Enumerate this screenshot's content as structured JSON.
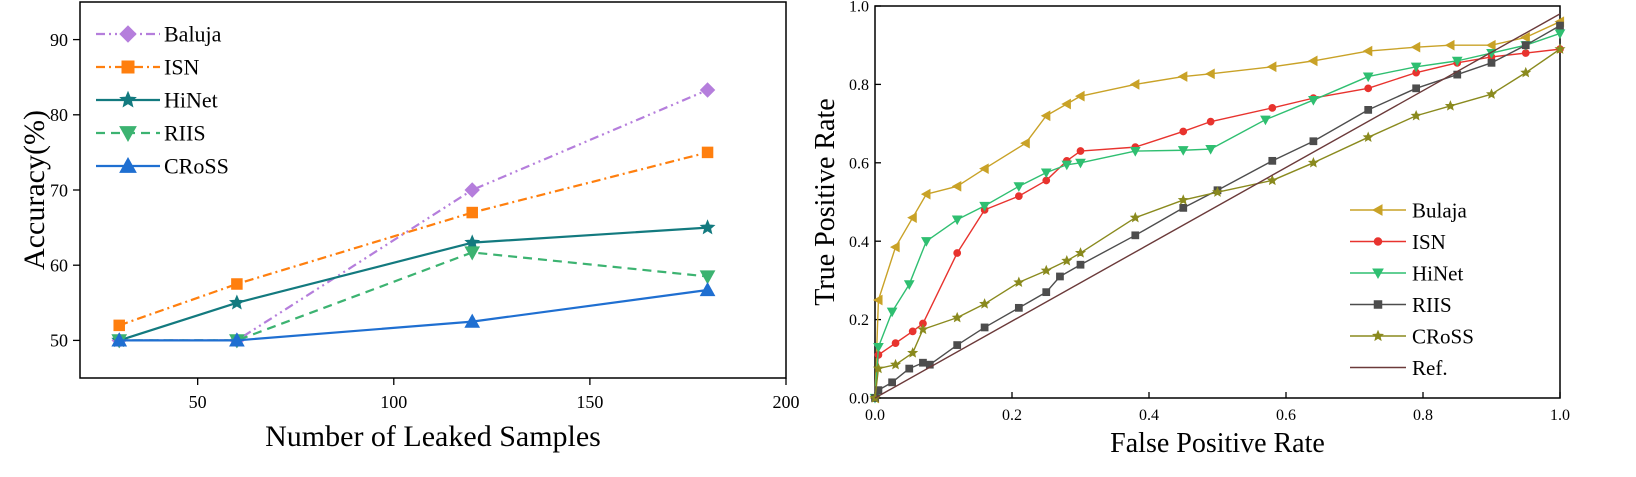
{
  "chart_data": [
    {
      "type": "line",
      "title": "",
      "xlabel": "Number of Leaked Samples",
      "ylabel": "Accuracy(%)",
      "xlim": [
        20,
        200
      ],
      "ylim": [
        45,
        95
      ],
      "xticks": [
        50,
        100,
        150,
        200
      ],
      "yticks": [
        50,
        60,
        70,
        80,
        90
      ],
      "grid": false,
      "legend_position": "top-left",
      "series": [
        {
          "name": "Baluja",
          "color": "#b57edc",
          "marker": "diamond",
          "dash": "dashdotdot",
          "x": [
            30,
            60,
            120,
            180
          ],
          "values": [
            50,
            50,
            70,
            83.3
          ]
        },
        {
          "name": "ISN",
          "color": "#ff7f0e",
          "marker": "square",
          "dash": "dashdot",
          "x": [
            30,
            60,
            120,
            180
          ],
          "values": [
            52,
            57.5,
            67,
            75
          ]
        },
        {
          "name": "HiNet",
          "color": "#137a7f",
          "marker": "star",
          "dash": "solid",
          "x": [
            30,
            60,
            120,
            180
          ],
          "values": [
            50,
            55,
            63,
            65
          ]
        },
        {
          "name": "RIIS",
          "color": "#3cb371",
          "marker": "triangle-down",
          "dash": "dashed",
          "x": [
            30,
            60,
            120,
            180
          ],
          "values": [
            50,
            50,
            61.7,
            58.5
          ]
        },
        {
          "name": "CRoSS",
          "color": "#1f6fd1",
          "marker": "triangle-up",
          "dash": "solid",
          "x": [
            30,
            60,
            120,
            180
          ],
          "values": [
            50,
            50,
            52.5,
            56.7
          ]
        }
      ]
    },
    {
      "type": "line",
      "title": "",
      "xlabel": "False Positive Rate",
      "ylabel": "True Positive Rate",
      "xlim": [
        0,
        1
      ],
      "ylim": [
        0,
        1
      ],
      "xticks": [
        "0.0",
        "0.2",
        "0.4",
        "0.6",
        "0.8",
        "1.0"
      ],
      "yticks": [
        "0.0",
        "0.2",
        "0.4",
        "0.6",
        "0.8",
        "1.0"
      ],
      "grid": false,
      "legend_position": "bottom-right",
      "series": [
        {
          "name": "Bulaja",
          "color": "#c9a227",
          "marker": "triangle-left",
          "x": [
            0,
            0.005,
            0.03,
            0.055,
            0.075,
            0.12,
            0.16,
            0.22,
            0.25,
            0.28,
            0.3,
            0.38,
            0.45,
            0.49,
            0.58,
            0.64,
            0.72,
            0.79,
            0.84,
            0.9,
            0.95,
            1.0
          ],
          "y": [
            0,
            0.25,
            0.385,
            0.46,
            0.52,
            0.54,
            0.585,
            0.65,
            0.72,
            0.75,
            0.77,
            0.8,
            0.82,
            0.827,
            0.845,
            0.86,
            0.885,
            0.895,
            0.9,
            0.9,
            0.92,
            0.96
          ]
        },
        {
          "name": "ISN",
          "color": "#e8332e",
          "marker": "circle",
          "x": [
            0,
            0.005,
            0.03,
            0.055,
            0.07,
            0.12,
            0.16,
            0.21,
            0.25,
            0.28,
            0.3,
            0.38,
            0.45,
            0.49,
            0.58,
            0.64,
            0.72,
            0.79,
            0.85,
            0.9,
            0.95,
            1.0
          ],
          "y": [
            0,
            0.11,
            0.14,
            0.17,
            0.19,
            0.37,
            0.48,
            0.515,
            0.555,
            0.605,
            0.63,
            0.64,
            0.68,
            0.705,
            0.74,
            0.765,
            0.79,
            0.83,
            0.855,
            0.87,
            0.88,
            0.89
          ]
        },
        {
          "name": "HiNet",
          "color": "#2fbf71",
          "marker": "triangle-down",
          "x": [
            0,
            0.005,
            0.025,
            0.05,
            0.075,
            0.12,
            0.16,
            0.21,
            0.25,
            0.28,
            0.3,
            0.38,
            0.45,
            0.49,
            0.57,
            0.64,
            0.72,
            0.79,
            0.85,
            0.9,
            0.95,
            1.0
          ],
          "y": [
            0,
            0.13,
            0.22,
            0.29,
            0.4,
            0.455,
            0.49,
            0.54,
            0.575,
            0.595,
            0.6,
            0.63,
            0.632,
            0.635,
            0.71,
            0.76,
            0.82,
            0.845,
            0.86,
            0.88,
            0.9,
            0.93
          ]
        },
        {
          "name": "RIIS",
          "color": "#4d4d4d",
          "marker": "square",
          "x": [
            0,
            0.005,
            0.025,
            0.05,
            0.07,
            0.08,
            0.12,
            0.16,
            0.21,
            0.25,
            0.27,
            0.3,
            0.38,
            0.45,
            0.5,
            0.58,
            0.64,
            0.72,
            0.79,
            0.85,
            0.9,
            0.95,
            1.0
          ],
          "y": [
            0,
            0.02,
            0.04,
            0.075,
            0.09,
            0.085,
            0.135,
            0.18,
            0.23,
            0.27,
            0.31,
            0.34,
            0.415,
            0.485,
            0.53,
            0.605,
            0.655,
            0.735,
            0.79,
            0.825,
            0.855,
            0.9,
            0.95
          ]
        },
        {
          "name": "CRoSS",
          "color": "#8a8a1e",
          "marker": "star",
          "x": [
            0,
            0.005,
            0.03,
            0.055,
            0.07,
            0.12,
            0.16,
            0.21,
            0.25,
            0.28,
            0.3,
            0.38,
            0.45,
            0.5,
            0.58,
            0.64,
            0.72,
            0.79,
            0.84,
            0.9,
            0.95,
            1.0
          ],
          "y": [
            0,
            0.075,
            0.085,
            0.115,
            0.175,
            0.205,
            0.24,
            0.295,
            0.325,
            0.35,
            0.37,
            0.46,
            0.505,
            0.525,
            0.555,
            0.6,
            0.665,
            0.72,
            0.745,
            0.775,
            0.83,
            0.89
          ]
        },
        {
          "name": "Ref.",
          "color": "#6b3a3a",
          "marker": "none",
          "x": [
            0,
            1
          ],
          "y": [
            0,
            0.98
          ]
        }
      ]
    }
  ]
}
